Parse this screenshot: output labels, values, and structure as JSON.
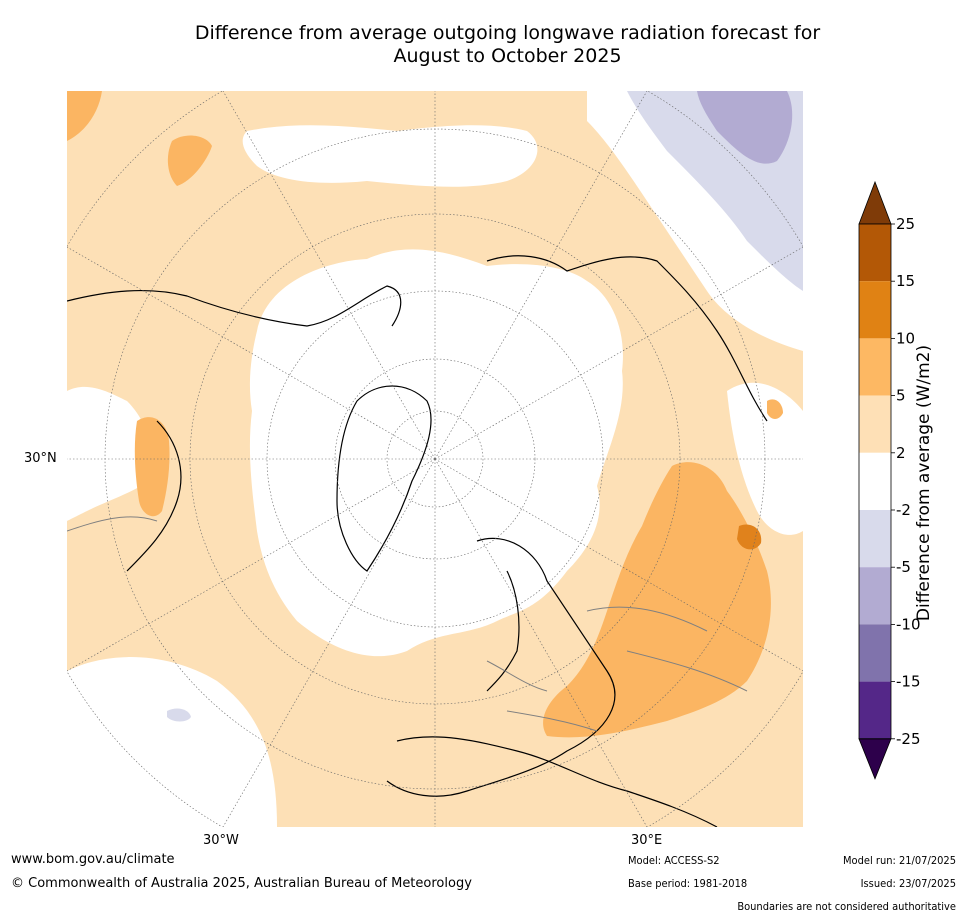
{
  "title": {
    "line1": "Difference from average outgoing longwave radiation forecast for",
    "line2": "August to October 2025"
  },
  "map": {
    "projection": "north polar stereographic",
    "lat_label": "30°N",
    "lon_labels": [
      "30°W",
      "30°E"
    ],
    "fill_colors": {
      "2_to_5": "#fde0b6",
      "5_to_10": "#fbb562",
      "10_to_15": "#e0821c",
      "minus2_to_minus5": "#d8d9ea",
      "minus5_to_minus10": "#b2abd2",
      "neutral": "#ffffff"
    },
    "coastline_color": "#000000",
    "border_color": "#808080"
  },
  "colorbar": {
    "label": "Difference from average (W/m2)",
    "ticks": [
      "25",
      "15",
      "10",
      "5",
      "2",
      "-2",
      "-5",
      "-10",
      "-15",
      "-25"
    ],
    "colors": [
      "#7f3b08",
      "#b35806",
      "#e08214",
      "#fdb863",
      "#fee0b6",
      "#ffffff",
      "#d8daeb",
      "#b2abd2",
      "#8073ac",
      "#542788",
      "#2d004b"
    ]
  },
  "footer": {
    "website": "www.bom.gov.au/climate",
    "copyright": "© Commonwealth of Australia 2025, Australian Bureau of Meteorology",
    "model": "Model: ACCESS-S2",
    "base_period": "Base period: 1981-2018",
    "model_run": "Model run: 21/07/2025",
    "issued": "Issued: 23/07/2025",
    "disclaimer": "Boundaries are not considered authoritative"
  }
}
